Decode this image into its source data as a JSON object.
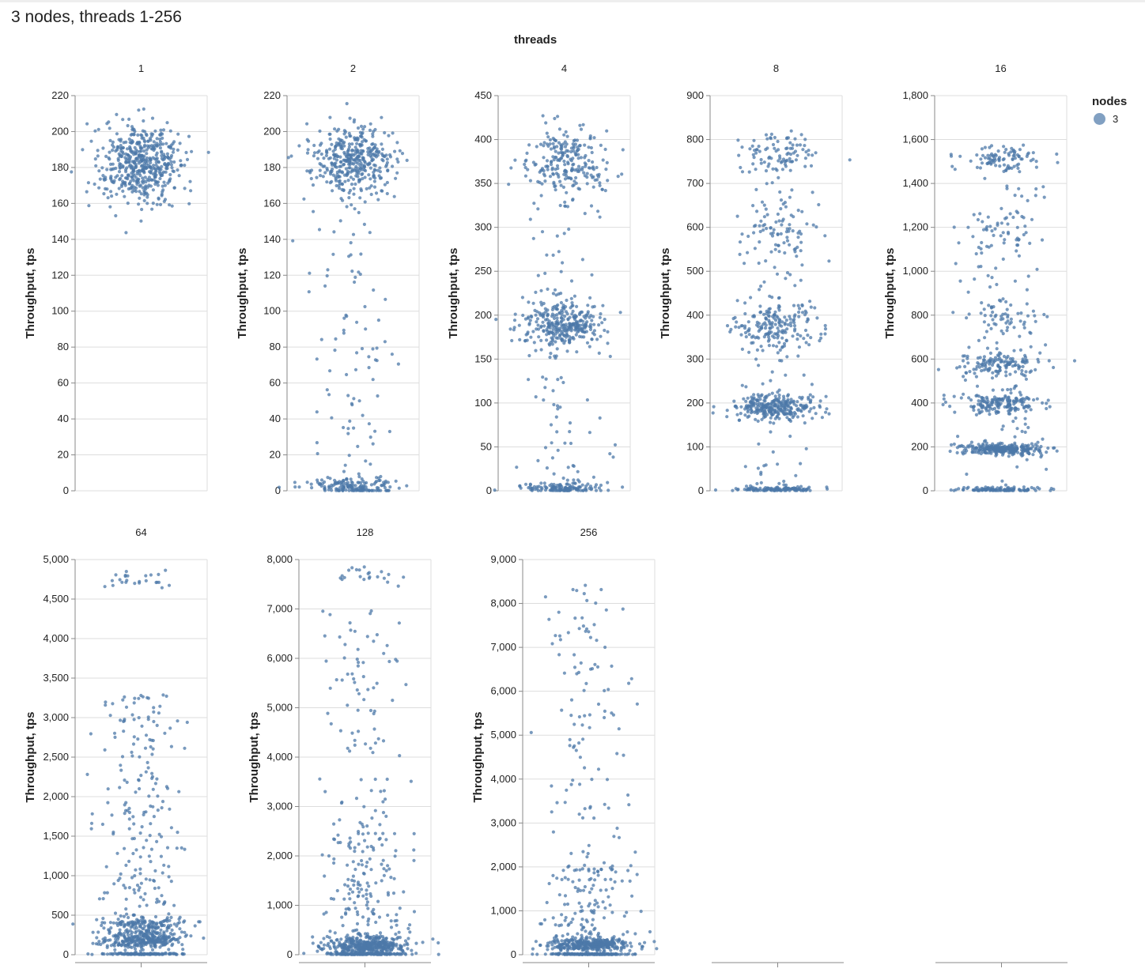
{
  "title": "3 nodes, threads 1-256",
  "chart_data": {
    "type": "scatter",
    "subtype": "faceted jitter strip plot",
    "title": "3 nodes, threads 1-256",
    "facet_header": "threads",
    "ylabel": "Throughput, tps",
    "xlabel": "",
    "grid": true,
    "point_color": "#4c78a8",
    "legend": {
      "title": "nodes",
      "entries": [
        "3"
      ],
      "placement": "top-right"
    },
    "facets": [
      {
        "label": "1",
        "ylim": [
          0,
          220
        ],
        "yticks": [
          0,
          20,
          40,
          60,
          80,
          100,
          120,
          140,
          160,
          180,
          200,
          220
        ],
        "clusters": [
          {
            "center": 182,
            "sd": 11,
            "n": 520
          }
        ],
        "uniform": []
      },
      {
        "label": "2",
        "ylim": [
          0,
          220
        ],
        "yticks": [
          0,
          20,
          40,
          60,
          80,
          100,
          120,
          140,
          160,
          180,
          200,
          220
        ],
        "clusters": [
          {
            "center": 184,
            "sd": 10,
            "n": 380
          },
          {
            "center": 2,
            "sd": 2.5,
            "n": 160
          }
        ],
        "uniform": [
          {
            "min": 0,
            "max": 200,
            "n": 110
          }
        ]
      },
      {
        "label": "4",
        "ylim": [
          0,
          450
        ],
        "yticks": [
          0,
          50,
          100,
          150,
          200,
          250,
          300,
          350,
          400,
          450
        ],
        "clusters": [
          {
            "center": 372,
            "sd": 20,
            "n": 210
          },
          {
            "center": 188,
            "sd": 14,
            "n": 320
          },
          {
            "center": 3,
            "sd": 3,
            "n": 130
          }
        ],
        "uniform": [
          {
            "min": 0,
            "max": 420,
            "n": 110
          }
        ]
      },
      {
        "label": "8",
        "ylim": [
          0,
          900
        ],
        "yticks": [
          0,
          100,
          200,
          300,
          400,
          500,
          600,
          700,
          800,
          900
        ],
        "clusters": [
          {
            "center": 765,
            "sd": 25,
            "n": 80
          },
          {
            "center": 590,
            "sd": 30,
            "n": 55
          },
          {
            "center": 375,
            "sd": 25,
            "n": 170
          },
          {
            "center": 190,
            "sd": 14,
            "n": 280
          },
          {
            "center": 3,
            "sd": 3,
            "n": 110
          }
        ],
        "uniform": [
          {
            "min": 0,
            "max": 820,
            "n": 130
          }
        ]
      },
      {
        "label": "16",
        "ylim": [
          0,
          1800
        ],
        "yticks": [
          0,
          200,
          400,
          600,
          800,
          1000,
          1200,
          1400,
          1600,
          1800
        ],
        "clusters": [
          {
            "center": 1510,
            "sd": 28,
            "n": 95
          },
          {
            "center": 1180,
            "sd": 60,
            "n": 45
          },
          {
            "center": 790,
            "sd": 45,
            "n": 55
          },
          {
            "center": 580,
            "sd": 28,
            "n": 130
          },
          {
            "center": 395,
            "sd": 25,
            "n": 160
          },
          {
            "center": 190,
            "sd": 12,
            "n": 270
          },
          {
            "center": 5,
            "sd": 5,
            "n": 110
          }
        ],
        "uniform": [
          {
            "min": 0,
            "max": 1400,
            "n": 110
          }
        ]
      },
      {
        "label": "64",
        "ylim": [
          0,
          5000
        ],
        "yticks": [
          0,
          500,
          1000,
          1500,
          2000,
          2500,
          3000,
          3500,
          4000,
          4500,
          5000
        ],
        "clusters": [
          {
            "center": 4740,
            "sd": 70,
            "n": 25
          },
          {
            "center": 200,
            "sd": 60,
            "n": 300
          },
          {
            "center": 400,
            "sd": 40,
            "n": 110
          },
          {
            "center": 10,
            "sd": 5,
            "n": 110
          }
        ],
        "uniform": [
          {
            "min": 0,
            "max": 3300,
            "n": 230
          }
        ]
      },
      {
        "label": "128",
        "ylim": [
          0,
          8000
        ],
        "yticks": [
          0,
          1000,
          2000,
          3000,
          4000,
          5000,
          6000,
          7000,
          8000
        ],
        "clusters": [
          {
            "center": 7700,
            "sd": 140,
            "n": 22
          },
          {
            "center": 180,
            "sd": 110,
            "n": 420
          },
          {
            "center": 15,
            "sd": 8,
            "n": 90
          }
        ],
        "uniform": [
          {
            "min": 0,
            "max": 2500,
            "n": 160
          },
          {
            "min": 2500,
            "max": 7000,
            "n": 90
          }
        ]
      },
      {
        "label": "256",
        "ylim": [
          0,
          9000
        ],
        "yticks": [
          0,
          1000,
          2000,
          3000,
          4000,
          5000,
          6000,
          7000,
          8000,
          9000
        ],
        "clusters": [
          {
            "center": 230,
            "sd": 70,
            "n": 320
          },
          {
            "center": 12,
            "sd": 6,
            "n": 160
          }
        ],
        "uniform": [
          {
            "min": 0,
            "max": 2000,
            "n": 150
          },
          {
            "min": 2000,
            "max": 8500,
            "n": 110
          }
        ]
      },
      {
        "label": "",
        "empty": true
      },
      {
        "label": "",
        "empty": true
      }
    ]
  }
}
